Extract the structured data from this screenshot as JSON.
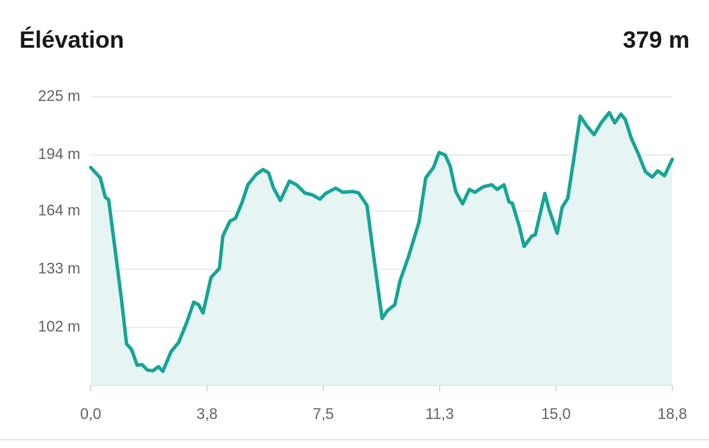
{
  "chart_data": {
    "type": "area",
    "title": "Élévation",
    "value": "379 m",
    "x": [
      0,
      0.31,
      0.47,
      0.58,
      0.76,
      0.99,
      1.16,
      1.32,
      1.5,
      1.66,
      1.83,
      2.01,
      2.19,
      2.33,
      2.6,
      2.84,
      3.11,
      3.33,
      3.49,
      3.63,
      3.89,
      4.16,
      4.27,
      4.5,
      4.68,
      4.9,
      5.08,
      5.35,
      5.57,
      5.75,
      5.91,
      6.13,
      6.42,
      6.65,
      6.92,
      7.18,
      7.41,
      7.59,
      7.92,
      8.15,
      8.48,
      8.66,
      8.93,
      9.15,
      9.42,
      9.6,
      9.83,
      10,
      10.27,
      10.61,
      10.83,
      11.08,
      11.26,
      11.46,
      11.62,
      11.8,
      12.02,
      12.24,
      12.42,
      12.69,
      12.96,
      13.14,
      13.36,
      13.52,
      13.63,
      13.85,
      14.01,
      14.26,
      14.37,
      14.68,
      14.81,
      15.08,
      15.24,
      15.42,
      15.64,
      15.82,
      16.05,
      16.27,
      16.5,
      16.76,
      16.94,
      17.14,
      17.28,
      17.48,
      17.7,
      17.93,
      18.15,
      18.33,
      18.55,
      18.8
    ],
    "values": [
      187.3,
      181.8,
      171.5,
      170.1,
      147,
      117.7,
      93.2,
      90.3,
      81.9,
      82.2,
      79.3,
      78.9,
      81.1,
      78.6,
      89.2,
      93.9,
      104.9,
      115.5,
      114.1,
      109.7,
      128.7,
      133.5,
      150.7,
      158.7,
      160.2,
      169,
      178.1,
      183.6,
      186.2,
      184.4,
      176.3,
      169.7,
      180,
      178.1,
      173.7,
      172.6,
      170.4,
      173.4,
      176.3,
      174.1,
      174.5,
      173.7,
      167.1,
      139.7,
      106.8,
      111.1,
      114.1,
      126.9,
      139.7,
      158,
      181.8,
      187.3,
      195.3,
      193.9,
      188,
      174.5,
      167.9,
      175.6,
      174.1,
      177,
      178.1,
      175.6,
      178.1,
      169,
      168.2,
      156.2,
      145.2,
      150.7,
      151.4,
      173.4,
      165.3,
      152.2,
      166.1,
      170.8,
      194.6,
      214.7,
      209.2,
      204.8,
      211.1,
      216.6,
      211.1,
      215.8,
      212.9,
      202.7,
      194.6,
      185.1,
      182.2,
      185.5,
      182.9,
      191.7
    ],
    "color": "#17a596",
    "fill": "#e6f5f3",
    "xlim": [
      0,
      18.8
    ],
    "xticks": [
      {
        "value": 0,
        "label": "0,0"
      },
      {
        "value": 3.76,
        "label": "3,8"
      },
      {
        "value": 7.52,
        "label": "7,5"
      },
      {
        "value": 11.28,
        "label": "11,3"
      },
      {
        "value": 15.04,
        "label": "15,0"
      },
      {
        "value": 18.8,
        "label": "18,8"
      }
    ],
    "ylim": [
      71.25,
      225
    ],
    "yticks": [
      {
        "value": 225,
        "label": "225 m"
      },
      {
        "value": 194,
        "label": "194 m"
      },
      {
        "value": 164,
        "label": "164 m"
      },
      {
        "value": 133,
        "label": "133 m"
      },
      {
        "value": 102,
        "label": "102 m"
      }
    ],
    "grid": true
  }
}
